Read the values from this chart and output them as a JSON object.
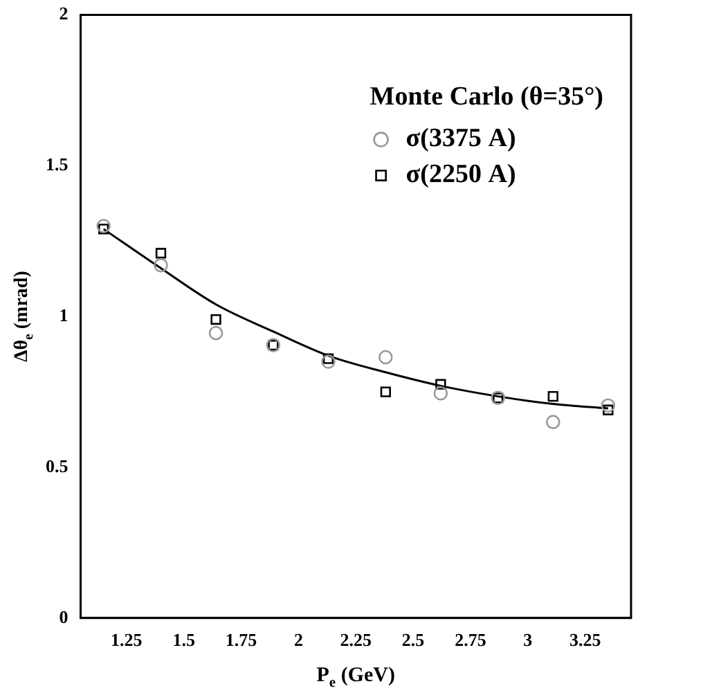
{
  "chart_data": {
    "type": "scatter",
    "xlabel": "P$_{e}$ (GeV)",
    "ylabel": "Δθ$_{e}$ (mrad)",
    "legend_title": "Monte Carlo (θ=35°)",
    "legend": "top right",
    "grid": false,
    "x": [
      1.15,
      1.4,
      1.64,
      1.89,
      2.13,
      2.38,
      2.62,
      2.87,
      3.11,
      3.35
    ],
    "xlim": [
      1.05,
      3.45
    ],
    "xticks": [
      1.25,
      1.5,
      1.75,
      2,
      2.25,
      2.5,
      2.75,
      3,
      3.25
    ],
    "ylim": [
      0,
      2
    ],
    "yticks": [
      0,
      0.5,
      1,
      1.5,
      2
    ],
    "series": [
      {
        "name": "σ(3375 A)",
        "color": "#999999",
        "marker": "circle",
        "values": [
          1.3,
          1.17,
          0.945,
          0.905,
          0.85,
          0.865,
          0.745,
          0.73,
          0.65,
          0.705
        ]
      },
      {
        "name": "σ(2250 A)",
        "color": "#000000",
        "marker": "square",
        "values": [
          1.29,
          1.21,
          0.99,
          0.905,
          0.86,
          0.75,
          0.775,
          0.73,
          0.735,
          0.69
        ]
      },
      {
        "type": "line",
        "color": "#000000",
        "marker": "none",
        "line_style": "solid",
        "values": [
          1.29,
          1.16,
          1.04,
          0.95,
          0.87,
          0.815,
          0.77,
          0.735,
          0.71,
          0.695
        ]
      }
    ]
  }
}
